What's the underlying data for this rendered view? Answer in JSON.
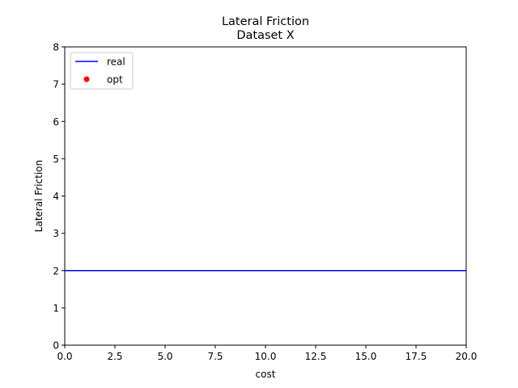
{
  "chart_data": {
    "type": "line",
    "title": "Lateral Friction\nDataset X",
    "title_lines": [
      "Lateral Friction",
      "Dataset X"
    ],
    "xlabel": "cost",
    "ylabel": "Lateral Friction",
    "xlim": [
      0,
      20
    ],
    "ylim": [
      0,
      8
    ],
    "xticks": [
      0,
      2.5,
      5,
      7.5,
      10,
      12.5,
      15,
      17.5,
      20
    ],
    "xtick_labels": [
      "0.0",
      "2.5",
      "5.0",
      "7.5",
      "10.0",
      "12.5",
      "15.0",
      "17.5",
      "20.0"
    ],
    "yticks": [
      0,
      1,
      2,
      3,
      4,
      5,
      6,
      7,
      8
    ],
    "ytick_labels": [
      "0",
      "1",
      "2",
      "3",
      "4",
      "5",
      "6",
      "7",
      "8"
    ],
    "grid": false,
    "legend_position": "top-left",
    "series": [
      {
        "name": "real",
        "kind": "line",
        "color": "#0000ff",
        "x": [
          0,
          20
        ],
        "y": [
          2,
          2
        ]
      },
      {
        "name": "opt",
        "kind": "scatter",
        "color": "#ff0000",
        "x": [],
        "y": []
      }
    ]
  }
}
